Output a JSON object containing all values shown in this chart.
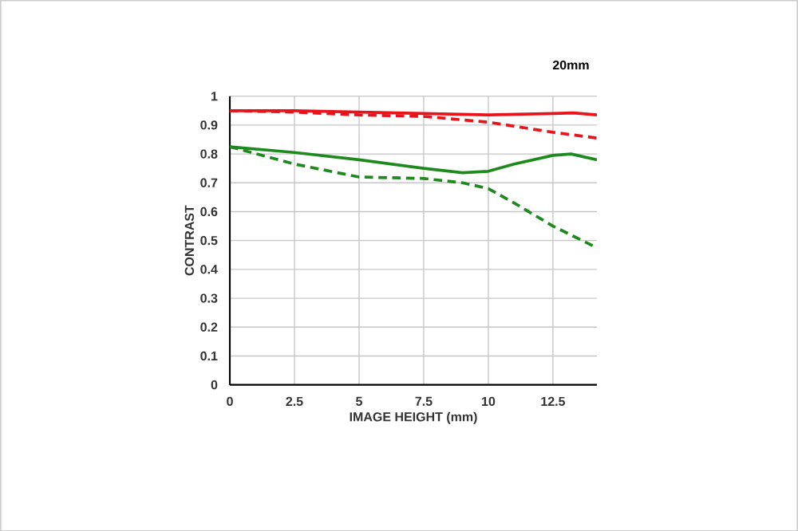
{
  "chart_data": {
    "type": "line",
    "title": "20mm",
    "xlabel": "IMAGE HEIGHT (mm)",
    "ylabel": "CONTRAST",
    "xlim": [
      0,
      14.2
    ],
    "ylim": [
      0,
      1
    ],
    "xticks": [
      0,
      2.5,
      5,
      7.5,
      10,
      12.5
    ],
    "yticks": [
      0,
      0.1,
      0.2,
      0.3,
      0.4,
      0.5,
      0.6,
      0.7,
      0.8,
      0.9,
      1
    ],
    "grid": true,
    "marker": "none",
    "series": [
      {
        "color": "#e8141c",
        "line_style": "solid",
        "x": [
          0,
          2.5,
          5,
          7.5,
          10,
          12.5,
          13.3,
          14.2
        ],
        "values": [
          0.95,
          0.95,
          0.945,
          0.94,
          0.935,
          0.94,
          0.942,
          0.935
        ]
      },
      {
        "color": "#e8141c",
        "line_style": "dashed",
        "x": [
          0,
          2.5,
          5,
          7.5,
          10,
          12.5,
          14.2
        ],
        "values": [
          0.95,
          0.945,
          0.935,
          0.93,
          0.91,
          0.875,
          0.855
        ]
      },
      {
        "color": "#1e8a1e",
        "line_style": "solid",
        "x": [
          0,
          2.5,
          5,
          7.5,
          9,
          10,
          11,
          12.5,
          13.2,
          14.2
        ],
        "values": [
          0.825,
          0.805,
          0.78,
          0.75,
          0.735,
          0.74,
          0.765,
          0.795,
          0.8,
          0.78
        ]
      },
      {
        "color": "#1e8a1e",
        "line_style": "dashed",
        "x": [
          0,
          2.5,
          5,
          7.5,
          9,
          10,
          11,
          12.5,
          14.2
        ],
        "values": [
          0.825,
          0.765,
          0.72,
          0.715,
          0.7,
          0.68,
          0.63,
          0.55,
          0.475
        ]
      }
    ]
  }
}
